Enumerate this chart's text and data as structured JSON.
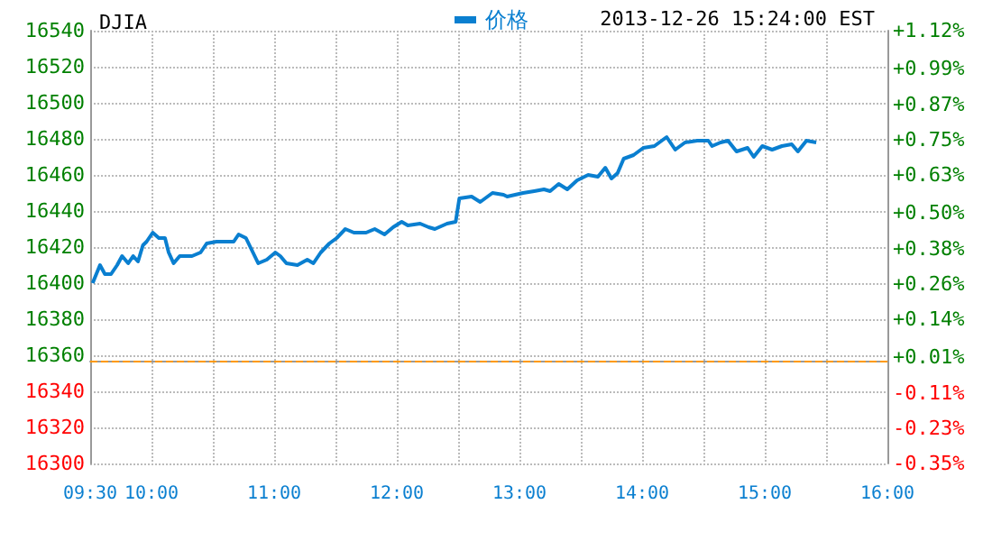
{
  "chart_data": {
    "type": "line",
    "title": "DJIA",
    "annotations": [
      "2013-12-26 15:24:00 EST"
    ],
    "xlim": [
      9.5,
      16
    ],
    "xticks": [
      {
        "value": 9.5,
        "label": "09:30"
      },
      {
        "value": 10,
        "label": "10:00"
      },
      {
        "value": 10.5,
        "label": null
      },
      {
        "value": 11,
        "label": "11:00"
      },
      {
        "value": 11.5,
        "label": null
      },
      {
        "value": 12,
        "label": "12:00"
      },
      {
        "value": 12.5,
        "label": null
      },
      {
        "value": 13,
        "label": "13:00"
      },
      {
        "value": 13.5,
        "label": null
      },
      {
        "value": 14,
        "label": "14:00"
      },
      {
        "value": 14.5,
        "label": null
      },
      {
        "value": 15,
        "label": "15:00"
      },
      {
        "value": 15.5,
        "label": null
      },
      {
        "value": 16,
        "label": "16:00"
      }
    ],
    "ylim": [
      16300,
      16540
    ],
    "yticks": [
      16300,
      16320,
      16340,
      16360,
      16380,
      16400,
      16420,
      16440,
      16460,
      16480,
      16500,
      16520,
      16540
    ],
    "y2lim": [
      -0.35,
      1.12
    ],
    "y2ticks": [
      {
        "value": -0.35,
        "label": "-0.35%"
      },
      {
        "value": -0.23,
        "label": "-0.23%"
      },
      {
        "value": -0.11,
        "label": "-0.11%"
      },
      {
        "value": 0.01,
        "label": "+0.01%"
      },
      {
        "value": 0.14,
        "label": "+0.14%"
      },
      {
        "value": 0.26,
        "label": "+0.26%"
      },
      {
        "value": 0.38,
        "label": "+0.38%"
      },
      {
        "value": 0.5,
        "label": "+0.50%"
      },
      {
        "value": 0.63,
        "label": "+0.63%"
      },
      {
        "value": 0.75,
        "label": "+0.75%"
      },
      {
        "value": 0.87,
        "label": "+0.87%"
      },
      {
        "value": 0.99,
        "label": "+0.99%"
      },
      {
        "value": 1.12,
        "label": "+1.12%"
      }
    ],
    "grid": true,
    "legend": "top",
    "marker": "none",
    "line_style": "solid",
    "ref_lines": [
      {
        "axis": "y",
        "value": 16357,
        "color": "#ff9900",
        "line_style": "dashed"
      }
    ],
    "series": [
      {
        "name": "价格",
        "color": "#0a7fd0",
        "x": [
          9.52,
          9.58,
          9.62,
          9.67,
          9.72,
          9.76,
          9.81,
          9.85,
          9.89,
          9.93,
          9.96,
          10.01,
          10.06,
          10.11,
          10.14,
          10.18,
          10.23,
          10.33,
          10.4,
          10.45,
          10.53,
          10.67,
          10.71,
          10.77,
          10.82,
          10.87,
          10.94,
          11.01,
          11.05,
          11.1,
          11.19,
          11.27,
          11.32,
          11.38,
          11.45,
          11.51,
          11.58,
          11.65,
          11.75,
          11.82,
          11.9,
          11.97,
          12.04,
          12.09,
          12.19,
          12.26,
          12.31,
          12.41,
          12.48,
          12.51,
          12.61,
          12.68,
          12.78,
          12.87,
          12.9,
          13.03,
          13.12,
          13.2,
          13.25,
          13.32,
          13.39,
          13.47,
          13.56,
          13.64,
          13.7,
          13.75,
          13.8,
          13.85,
          13.93,
          14.01,
          14.1,
          14.2,
          14.27,
          14.35,
          14.45,
          14.54,
          14.57,
          14.64,
          14.7,
          14.77,
          14.86,
          14.91,
          14.98,
          15.06,
          15.14,
          15.22,
          15.27,
          15.34,
          15.42
        ],
        "values": [
          16400,
          16410,
          16405,
          16405,
          16410,
          16415,
          16411,
          16415,
          16412,
          16421,
          16423,
          16428,
          16425,
          16425,
          16417,
          16411,
          16415,
          16415,
          16417,
          16422,
          16423,
          16423,
          16427,
          16425,
          16418,
          16411,
          16413,
          16417,
          16415,
          16411,
          16410,
          16413,
          16411,
          16417,
          16422,
          16425,
          16430,
          16428,
          16428,
          16430,
          16427,
          16431,
          16434,
          16432,
          16433,
          16431,
          16430,
          16433,
          16434,
          16447,
          16448,
          16445,
          16450,
          16449,
          16448,
          16450,
          16451,
          16452,
          16451,
          16455,
          16452,
          16457,
          16460,
          16459,
          16464,
          16458,
          16461,
          16469,
          16471,
          16475,
          16476,
          16481,
          16474,
          16478,
          16479,
          16479,
          16476,
          16478,
          16479,
          16473,
          16475,
          16470,
          16476,
          16474,
          16476,
          16477,
          16473,
          16479,
          16478
        ]
      }
    ]
  }
}
